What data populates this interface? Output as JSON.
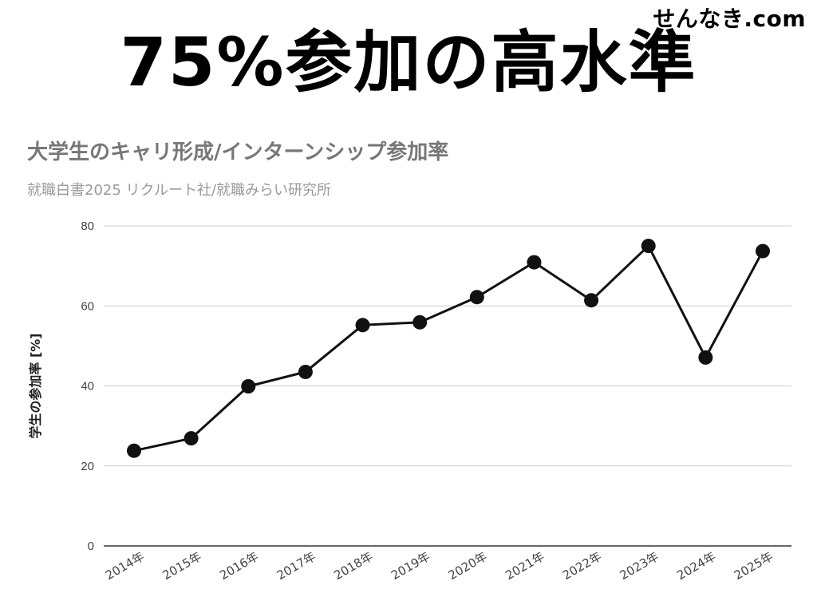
{
  "brand": {
    "text": "せんなき.com"
  },
  "headline": {
    "text": "75%参加の高水準"
  },
  "chart_data": {
    "type": "line",
    "title": "大学生のキャリ形成/インターンシップ参加率",
    "subtitle": "就職白書2025 リクルート社/就職みらい研究所",
    "xlabel": "",
    "ylabel": "学生の参加率 [%]",
    "ylim": [
      0,
      80
    ],
    "yticks": [
      "0",
      "20",
      "40",
      "60",
      "80"
    ],
    "categories": [
      "2014年",
      "2015年",
      "2016年",
      "2017年",
      "2018年",
      "2019年",
      "2020年",
      "2021年",
      "2022年",
      "2023年",
      "2024年",
      "2025年"
    ],
    "series": [
      {
        "values": [
          23.8,
          26.9,
          39.9,
          43.5,
          55.2,
          55.9,
          62.2,
          70.9,
          61.4,
          75.0,
          47.1,
          73.7
        ]
      }
    ],
    "grid": true,
    "line_color": "#111111"
  }
}
